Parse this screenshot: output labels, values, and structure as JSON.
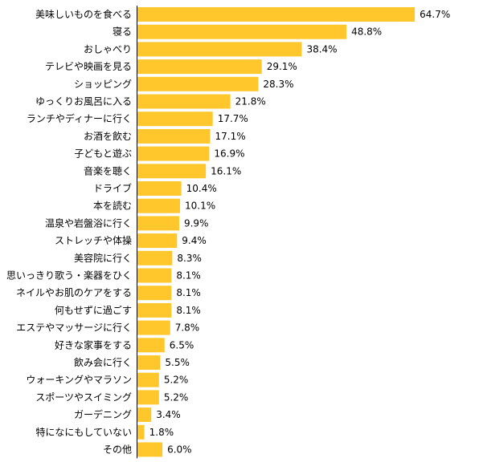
{
  "chart_data": {
    "type": "bar",
    "orientation": "horizontal",
    "title": "",
    "xlabel": "",
    "ylabel": "",
    "unit": "%",
    "xlim": [
      0,
      70
    ],
    "grid": false,
    "legend": "none",
    "bar_color": "#FFC72C",
    "categories": [
      "美味しいものを食べる",
      "寝る",
      "おしゃべり",
      "テレビや映画を見る",
      "ショッピング",
      "ゆっくりお風呂に入る",
      "ランチやディナーに行く",
      "お酒を飲む",
      "子どもと遊ぶ",
      "音楽を聴く",
      "ドライブ",
      "本を読む",
      "温泉や岩盤浴に行く",
      "ストレッチや体操",
      "美容院に行く",
      "思いっきり歌う・楽器をひく",
      "ネイルやお肌のケアをする",
      "何もせずに過ごす",
      "エステやマッサージに行く",
      "好きな家事をする",
      "飲み会に行く",
      "ウォーキングやマラソン",
      "スポーツやスイミング",
      "ガーデニング",
      "特になにもしていない",
      "その他"
    ],
    "values": [
      64.7,
      48.8,
      38.4,
      29.1,
      28.3,
      21.8,
      17.7,
      17.1,
      16.9,
      16.1,
      10.4,
      10.1,
      9.9,
      9.4,
      8.3,
      8.1,
      8.1,
      8.1,
      7.8,
      6.5,
      5.5,
      5.2,
      5.2,
      3.4,
      1.8,
      6.0
    ],
    "value_labels": [
      "64.7%",
      "48.8%",
      "38.4%",
      "29.1%",
      "28.3%",
      "21.8%",
      "17.7%",
      "17.1%",
      "16.9%",
      "16.1%",
      "10.4%",
      "10.1%",
      "9.9%",
      "9.4%",
      "8.3%",
      "8.1%",
      "8.1%",
      "8.1%",
      "7.8%",
      "6.5%",
      "5.5%",
      "5.2%",
      "5.2%",
      "3.4%",
      "1.8%",
      "6.0%"
    ]
  }
}
